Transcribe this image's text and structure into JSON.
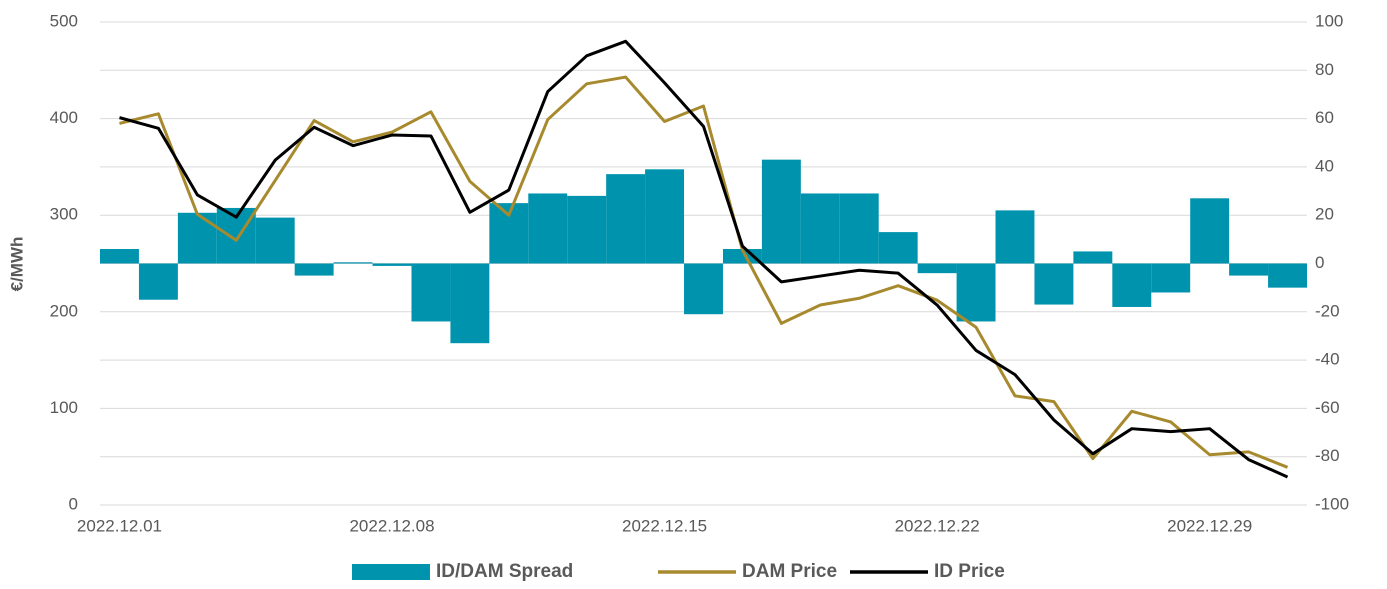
{
  "chart_data": {
    "type": "bar_line",
    "y_label": "€/MWh",
    "categories": [
      "2022.12.01",
      null,
      null,
      null,
      null,
      null,
      null,
      "2022.12.08",
      null,
      null,
      null,
      null,
      null,
      null,
      "2022.12.15",
      null,
      null,
      null,
      null,
      null,
      null,
      "2022.12.22",
      null,
      null,
      null,
      null,
      null,
      null,
      "2022.12.29",
      null,
      null
    ],
    "series": [
      {
        "name": "ID/DAM Spread",
        "color": "#0093ae",
        "kind": "bar",
        "axis": "y2",
        "values": [
          6,
          -15,
          21,
          23,
          19,
          -5,
          0.5,
          -1,
          -24,
          -33,
          25,
          29,
          28,
          37,
          39,
          -21,
          6,
          43,
          29,
          29,
          13,
          -4,
          -24,
          22,
          -17,
          5,
          -18,
          -12,
          27,
          -5,
          -10
        ]
      },
      {
        "name": "DAM Price",
        "color": "#a88a2e",
        "kind": "line",
        "values": [
          395,
          405,
          301,
          274,
          336,
          398,
          376,
          386,
          407,
          335,
          300,
          399,
          436,
          443,
          397,
          413,
          264,
          188,
          207,
          214,
          227,
          212,
          184,
          113,
          107,
          48,
          97,
          86,
          52,
          55,
          39
        ]
      },
      {
        "name": "ID Price",
        "color": "#000000",
        "kind": "line",
        "values": [
          401,
          390,
          321,
          298,
          357,
          391,
          372,
          383,
          382,
          303,
          326,
          428,
          465,
          480,
          437,
          392,
          268,
          231,
          237,
          243,
          240,
          207,
          160,
          135,
          88,
          53,
          79,
          76,
          79,
          47,
          29
        ]
      }
    ],
    "ylim": [
      0,
      500
    ],
    "yticks": [
      0,
      100,
      200,
      300,
      400,
      500
    ],
    "y2lim": [
      -100,
      100
    ],
    "y2ticks": [
      -100,
      -80,
      -60,
      -40,
      -20,
      0,
      20,
      40,
      60,
      80,
      100
    ],
    "grid": true,
    "legend": "bottom"
  }
}
